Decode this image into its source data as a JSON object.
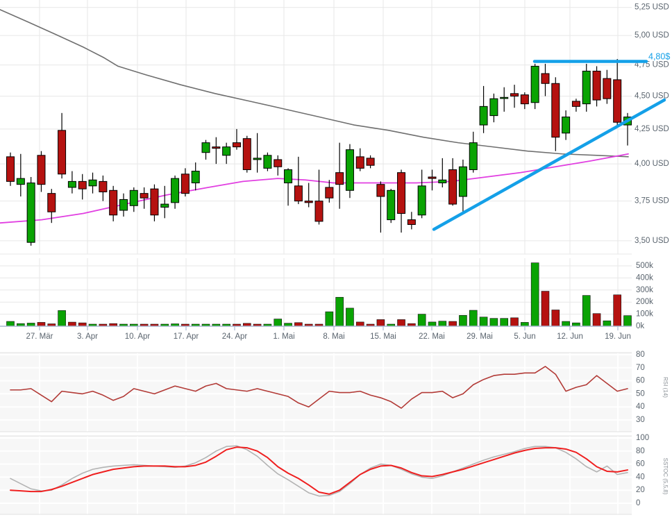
{
  "colors": {
    "up": "#0aa303",
    "down": "#b51210",
    "candle_border": "#000000",
    "ma_long": "#6f6f6f",
    "ma_short": "#e13fe1",
    "trend_blue": "#14a0e8",
    "rsi_line": "#b23a36",
    "stoch_main": "#ef1f1f",
    "stoch_signal": "#b3b3b3",
    "grid": "#e7e7e7",
    "grid_white": "#ffffff",
    "panel_bg": "#f7f7f7",
    "axis_text": "#5a646e",
    "baseline": "#aab8d2",
    "annotation_text": "#14a0e8"
  },
  "x_axis": {
    "tick_labels": [
      "27. Mär",
      "3. Apr",
      "10. Apr",
      "17. Apr",
      "24. Apr",
      "1. Mai",
      "8. Mai",
      "15. Mai",
      "22. Mai",
      "29. Mai",
      "5. Jun",
      "12. Jun",
      "19. Jun"
    ],
    "tick_x": [
      57,
      126,
      198,
      268,
      338,
      409,
      481,
      552,
      622,
      691,
      756,
      821,
      890
    ]
  },
  "chart_data": [
    {
      "type": "candlestick",
      "panel": "price",
      "currency": "USD",
      "scale": "log",
      "y_ticks": [
        {
          "v": 5.25,
          "label": "5,25 USD"
        },
        {
          "v": 5.0,
          "label": "5,00 USD"
        },
        {
          "v": 4.75,
          "label": "4,75 USD"
        },
        {
          "v": 4.5,
          "label": "4,50 USD"
        },
        {
          "v": 4.25,
          "label": "4,25 USD"
        },
        {
          "v": 4.0,
          "label": "4,00 USD"
        },
        {
          "v": 3.75,
          "label": "3,75 USD"
        },
        {
          "v": 3.5,
          "label": "3,50 USD"
        }
      ],
      "candles": [
        [
          4.05,
          4.08,
          3.85,
          3.88
        ],
        [
          3.86,
          4.07,
          3.78,
          3.9
        ],
        [
          3.49,
          3.91,
          3.47,
          3.87
        ],
        [
          4.06,
          4.09,
          3.81,
          3.86
        ],
        [
          3.8,
          3.83,
          3.61,
          3.68
        ],
        [
          4.24,
          4.37,
          3.9,
          3.93
        ],
        [
          3.84,
          3.95,
          3.8,
          3.88
        ],
        [
          3.88,
          3.93,
          3.76,
          3.83
        ],
        [
          3.85,
          3.94,
          3.8,
          3.89
        ],
        [
          3.88,
          3.92,
          3.75,
          3.81
        ],
        [
          3.82,
          3.85,
          3.62,
          3.66
        ],
        [
          3.69,
          3.8,
          3.65,
          3.76
        ],
        [
          3.72,
          3.84,
          3.68,
          3.82
        ],
        [
          3.8,
          3.84,
          3.7,
          3.77
        ],
        [
          3.83,
          3.86,
          3.62,
          3.66
        ],
        [
          3.71,
          3.85,
          3.64,
          3.73
        ],
        [
          3.74,
          3.92,
          3.7,
          3.9
        ],
        [
          3.93,
          3.97,
          3.78,
          3.8
        ],
        [
          3.87,
          4.01,
          3.82,
          3.95
        ],
        [
          4.08,
          4.17,
          4.03,
          4.15
        ],
        [
          4.12,
          4.19,
          4.0,
          4.11
        ],
        [
          4.06,
          4.15,
          4.0,
          4.12
        ],
        [
          4.15,
          4.25,
          4.1,
          4.12
        ],
        [
          4.18,
          4.2,
          3.94,
          3.96
        ],
        [
          4.03,
          4.22,
          3.94,
          4.04
        ],
        [
          3.97,
          4.08,
          3.95,
          4.06
        ],
        [
          4.03,
          4.06,
          3.92,
          3.98
        ],
        [
          3.87,
          3.97,
          3.72,
          3.96
        ],
        [
          3.85,
          4.05,
          3.73,
          3.75
        ],
        [
          3.75,
          3.87,
          3.71,
          3.74
        ],
        [
          3.75,
          3.96,
          3.6,
          3.62
        ],
        [
          3.84,
          3.89,
          3.74,
          3.77
        ],
        [
          3.94,
          4.15,
          3.7,
          3.86
        ],
        [
          3.82,
          4.14,
          3.77,
          4.1
        ],
        [
          4.05,
          4.11,
          3.95,
          3.97
        ],
        [
          4.04,
          4.06,
          3.97,
          3.99
        ],
        [
          3.86,
          3.88,
          3.55,
          3.78
        ],
        [
          3.63,
          3.83,
          3.61,
          3.82
        ],
        [
          3.94,
          3.96,
          3.55,
          3.67
        ],
        [
          3.63,
          3.68,
          3.57,
          3.6
        ],
        [
          3.66,
          3.96,
          3.64,
          3.85
        ],
        [
          3.91,
          3.96,
          3.82,
          3.9
        ],
        [
          3.87,
          4.04,
          3.84,
          3.89
        ],
        [
          3.96,
          4.04,
          3.72,
          3.73
        ],
        [
          3.78,
          4.03,
          3.67,
          3.98
        ],
        [
          3.96,
          4.23,
          3.94,
          4.15
        ],
        [
          4.28,
          4.58,
          4.22,
          4.42
        ],
        [
          4.35,
          4.52,
          4.3,
          4.48
        ],
        [
          4.49,
          4.57,
          4.38,
          4.49
        ],
        [
          4.52,
          4.59,
          4.41,
          4.5
        ],
        [
          4.51,
          4.53,
          4.4,
          4.44
        ],
        [
          4.45,
          4.76,
          4.4,
          4.74
        ],
        [
          4.68,
          4.76,
          4.5,
          4.6
        ],
        [
          4.6,
          4.65,
          4.09,
          4.19
        ],
        [
          4.22,
          4.39,
          4.17,
          4.34
        ],
        [
          4.46,
          4.48,
          4.38,
          4.42
        ],
        [
          4.44,
          4.76,
          4.38,
          4.7
        ],
        [
          4.7,
          4.74,
          4.42,
          4.47
        ],
        [
          4.64,
          4.71,
          4.44,
          4.48
        ],
        [
          4.63,
          4.8,
          4.26,
          4.3
        ],
        [
          4.28,
          4.37,
          4.13,
          4.34
        ]
      ],
      "ma_long_points": [
        [
          0,
          5.23
        ],
        [
          40,
          5.12
        ],
        [
          80,
          5.01
        ],
        [
          120,
          4.9
        ],
        [
          150,
          4.81
        ],
        [
          170,
          4.74
        ],
        [
          210,
          4.67
        ],
        [
          260,
          4.59
        ],
        [
          310,
          4.52
        ],
        [
          360,
          4.46
        ],
        [
          410,
          4.4
        ],
        [
          460,
          4.34
        ],
        [
          510,
          4.28
        ],
        [
          560,
          4.24
        ],
        [
          610,
          4.19
        ],
        [
          660,
          4.15
        ],
        [
          710,
          4.12
        ],
        [
          760,
          4.09
        ],
        [
          810,
          4.07
        ],
        [
          860,
          4.06
        ],
        [
          905,
          4.05
        ]
      ],
      "ma_short_points": [
        [
          0,
          3.61
        ],
        [
          60,
          3.63
        ],
        [
          120,
          3.67
        ],
        [
          180,
          3.73
        ],
        [
          240,
          3.79
        ],
        [
          300,
          3.84
        ],
        [
          350,
          3.88
        ],
        [
          400,
          3.9
        ],
        [
          440,
          3.89
        ],
        [
          480,
          3.87
        ],
        [
          540,
          3.87
        ],
        [
          600,
          3.87
        ],
        [
          650,
          3.88
        ],
        [
          700,
          3.91
        ],
        [
          750,
          3.94
        ],
        [
          800,
          3.98
        ],
        [
          850,
          4.02
        ],
        [
          905,
          4.07
        ]
      ],
      "trendlines": [
        {
          "name": "support-trendline",
          "points": [
            [
              625,
              3.57
            ],
            [
              957,
              4.47
            ]
          ]
        },
        {
          "name": "resistance-line",
          "points": [
            [
              770,
              4.78
            ],
            [
              931,
              4.78
            ]
          ],
          "label": "4,80$"
        }
      ]
    },
    {
      "type": "bar",
      "panel": "volume",
      "y_ticks": [
        {
          "v": 500,
          "label": "500k"
        },
        {
          "v": 400,
          "label": "400k"
        },
        {
          "v": 300,
          "label": "300k"
        },
        {
          "v": 200,
          "label": "200k"
        },
        {
          "v": 100,
          "label": "100k"
        },
        {
          "v": 0,
          "label": "0k"
        }
      ],
      "values_k": [
        40,
        22,
        26,
        32,
        20,
        130,
        34,
        28,
        14,
        10,
        22,
        12,
        16,
        10,
        12,
        9,
        20,
        12,
        14,
        16,
        10,
        12,
        14,
        24,
        12,
        14,
        60,
        25,
        30,
        12,
        15,
        120,
        240,
        150,
        35,
        10,
        55,
        12,
        55,
        22,
        100,
        35,
        42,
        40,
        90,
        132,
        76,
        65,
        65,
        70,
        32,
        525,
        290,
        135,
        40,
        28,
        255,
        105,
        45,
        260,
        88
      ],
      "bar_colors": [
        "g",
        "g",
        "g",
        "r",
        "r",
        "g",
        "r",
        "r",
        "g",
        "r",
        "r",
        "g",
        "g",
        "r",
        "r",
        "g",
        "g",
        "r",
        "g",
        "g",
        "g",
        "g",
        "r",
        "r",
        "r",
        "g",
        "g",
        "g",
        "r",
        "r",
        "r",
        "g",
        "g",
        "g",
        "r",
        "r",
        "r",
        "g",
        "r",
        "r",
        "g",
        "g",
        "g",
        "r",
        "g",
        "g",
        "g",
        "g",
        "g",
        "r",
        "g",
        "g",
        "r",
        "r",
        "g",
        "g",
        "g",
        "r",
        "g",
        "r",
        "g"
      ]
    },
    {
      "type": "line",
      "panel": "rsi",
      "side_label": "RSI (14)",
      "y_ticks": [
        {
          "v": 80,
          "label": "80"
        },
        {
          "v": 70,
          "label": "70"
        },
        {
          "v": 60,
          "label": "60"
        },
        {
          "v": 50,
          "label": "50"
        },
        {
          "v": 40,
          "label": "40"
        },
        {
          "v": 30,
          "label": "30"
        }
      ],
      "values": [
        53,
        53,
        54,
        49,
        44,
        52,
        51,
        50,
        52,
        49,
        45,
        48,
        54,
        52,
        50,
        53,
        56,
        54,
        52,
        56,
        58,
        54,
        53,
        52,
        54,
        52,
        50,
        48,
        43,
        40,
        46,
        52,
        51,
        51,
        52,
        49,
        47,
        44,
        39,
        46,
        51,
        51,
        52,
        47,
        50,
        57,
        61,
        64,
        65,
        65,
        66,
        66,
        71,
        65,
        52,
        55,
        57,
        64,
        58,
        52,
        54
      ]
    },
    {
      "type": "line",
      "panel": "stoch",
      "side_label": "SSTOC (5,5,8)",
      "y_ticks": [
        {
          "v": 100,
          "label": "100"
        },
        {
          "v": 80,
          "label": "80"
        },
        {
          "v": 60,
          "label": "60"
        },
        {
          "v": 40,
          "label": "40"
        },
        {
          "v": 20,
          "label": "20"
        },
        {
          "v": 0,
          "label": "0"
        }
      ],
      "series": [
        {
          "name": "signal",
          "color_key": "stoch_signal",
          "values": [
            38,
            30,
            22,
            19,
            20,
            28,
            38,
            46,
            52,
            55,
            57,
            58,
            59,
            58,
            57,
            56,
            55,
            57,
            62,
            70,
            80,
            87,
            88,
            82,
            72,
            58,
            45,
            36,
            26,
            16,
            11,
            12,
            18,
            30,
            44,
            54,
            60,
            58,
            52,
            45,
            40,
            38,
            42,
            48,
            54,
            60,
            66,
            71,
            75,
            79,
            84,
            87,
            87,
            85,
            78,
            68,
            56,
            48,
            57,
            44,
            47
          ]
        },
        {
          "name": "stochastic",
          "color_key": "stoch_main",
          "values": [
            20,
            19,
            18,
            18,
            21,
            26,
            32,
            38,
            44,
            48,
            52,
            54,
            56,
            57,
            57,
            57,
            56,
            56,
            58,
            63,
            72,
            82,
            86,
            85,
            80,
            70,
            56,
            46,
            38,
            28,
            17,
            14,
            20,
            32,
            44,
            52,
            57,
            58,
            54,
            47,
            42,
            41,
            44,
            48,
            52,
            57,
            62,
            67,
            72,
            77,
            81,
            84,
            85,
            85,
            83,
            78,
            68,
            56,
            49,
            48,
            51
          ]
        }
      ]
    }
  ]
}
